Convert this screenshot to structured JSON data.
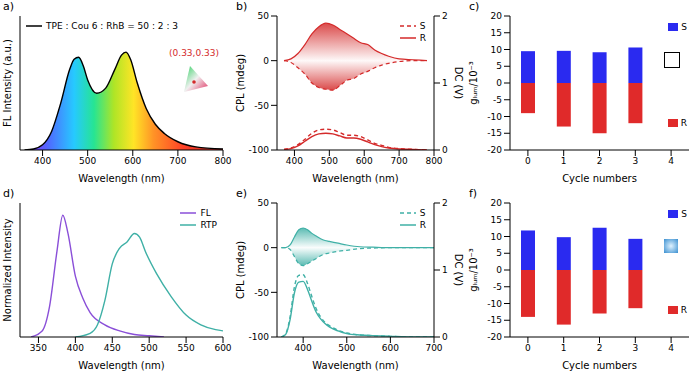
{
  "chart_data": [
    {
      "panel_label": "a)",
      "type": "line",
      "x_label": "Wavelength (nm)",
      "y_label": "FL Intensity (a.u.)",
      "xlim": [
        350,
        800
      ],
      "xticks": [
        400,
        500,
        600,
        700,
        800
      ],
      "ylim": [
        0,
        1.3
      ],
      "tick_labels": "x",
      "legend": "top left",
      "annotations": [
        "(0.33,0.33)"
      ],
      "series": [
        {
          "name": "TPE : Cou 6 : RhB = 50 : 2 : 3",
          "color": "#000000",
          "x": [
            360,
            380,
            400,
            420,
            440,
            460,
            470,
            480,
            490,
            500,
            520,
            540,
            560,
            575,
            585,
            595,
            610,
            630,
            650,
            670,
            700,
            740,
            800
          ],
          "values": [
            0,
            0.01,
            0.05,
            0.18,
            0.45,
            0.78,
            0.88,
            0.9,
            0.82,
            0.68,
            0.55,
            0.6,
            0.78,
            0.92,
            0.95,
            0.88,
            0.65,
            0.4,
            0.25,
            0.16,
            0.08,
            0.03,
            0.01
          ]
        }
      ]
    },
    {
      "panel_label": "b)",
      "type": "line",
      "x_label": "Wavelength (nm)",
      "y_label": "CPL (mdeg)",
      "y2_label": "DC (V)",
      "xlim": [
        350,
        800
      ],
      "xticks": [
        400,
        500,
        600,
        700,
        800
      ],
      "ylim": [
        -100,
        50
      ],
      "yticks": [
        -100,
        -50,
        0,
        50
      ],
      "y2lim": [
        0,
        2
      ],
      "y2ticks": [
        0,
        1,
        2
      ],
      "legend": "top right",
      "x": [
        370,
        390,
        410,
        430,
        450,
        470,
        490,
        510,
        530,
        550,
        570,
        590,
        610,
        630,
        650,
        670,
        700,
        740,
        780
      ],
      "series": [
        {
          "name": "S",
          "color": "#d42a2a",
          "line_style": "dashed",
          "values": [
            0,
            -2,
            -8,
            -15,
            -25,
            -30,
            -32,
            -33,
            -28,
            -22,
            -20,
            -15,
            -12,
            -8,
            -5,
            -3,
            -1,
            0,
            0
          ]
        },
        {
          "name": "R",
          "color": "#d42a2a",
          "line_style": "solid",
          "values": [
            0,
            2,
            8,
            18,
            30,
            38,
            42,
            40,
            35,
            30,
            25,
            20,
            18,
            12,
            8,
            5,
            2,
            1,
            0
          ]
        },
        {
          "name": "S",
          "color": "#d42a2a",
          "line_style": "dashed",
          "axis": "y2",
          "values": [
            0.01,
            0.03,
            0.08,
            0.16,
            0.25,
            0.3,
            0.31,
            0.3,
            0.26,
            0.22,
            0.22,
            0.2,
            0.15,
            0.1,
            0.07,
            0.04,
            0.02,
            0.01,
            0
          ]
        },
        {
          "name": "R",
          "color": "#d42a2a",
          "line_style": "solid",
          "axis": "y2",
          "values": [
            0.01,
            0.02,
            0.06,
            0.13,
            0.2,
            0.24,
            0.25,
            0.24,
            0.21,
            0.18,
            0.18,
            0.16,
            0.12,
            0.08,
            0.05,
            0.03,
            0.015,
            0.01,
            0
          ]
        }
      ]
    },
    {
      "panel_label": "c)",
      "type": "bar",
      "x_label": "Cycle numbers",
      "y_label": "gₗᵤₘ/10⁻³",
      "categories": [
        "0",
        "1",
        "2",
        "3",
        "4"
      ],
      "ylim": [
        -20,
        20
      ],
      "yticks": [
        -20,
        -15,
        -10,
        -5,
        0,
        5,
        10,
        15,
        20
      ],
      "legend": "right",
      "series": [
        {
          "name": "S",
          "color": "#2a2af0",
          "values": [
            9.5,
            9.6,
            9.2,
            10.6,
            null
          ]
        },
        {
          "name": "R",
          "color": "#e02a2a",
          "values": [
            -9,
            -13,
            -15,
            -12,
            null
          ]
        }
      ]
    },
    {
      "panel_label": "d)",
      "type": "line",
      "x_label": "Wavelength (nm)",
      "y_label": "Normalized Intensity",
      "xlim": [
        325,
        600
      ],
      "xticks": [
        350,
        400,
        450,
        500,
        550,
        600
      ],
      "ylim": [
        0,
        1.1
      ],
      "tick_labels": "x",
      "legend": "top right",
      "series": [
        {
          "name": "FL",
          "color": "#8a4fd8",
          "x": [
            340,
            355,
            365,
            375,
            383,
            390,
            400,
            410,
            420,
            440,
            460,
            480,
            500,
            520
          ],
          "values": [
            0,
            0.05,
            0.25,
            0.7,
            1.0,
            0.85,
            0.5,
            0.32,
            0.2,
            0.1,
            0.05,
            0.02,
            0.01,
            0
          ]
        },
        {
          "name": "RTP",
          "color": "#3fb0a6",
          "x": [
            400,
            420,
            430,
            440,
            450,
            460,
            470,
            480,
            487,
            495,
            510,
            530,
            550,
            570,
            590,
            600
          ],
          "values": [
            0,
            0.03,
            0.1,
            0.3,
            0.6,
            0.73,
            0.78,
            0.85,
            0.82,
            0.7,
            0.52,
            0.33,
            0.18,
            0.1,
            0.06,
            0.05
          ]
        }
      ]
    },
    {
      "panel_label": "e)",
      "type": "line",
      "x_label": "Wavelength (nm)",
      "y_label": "CPL (mdeg)",
      "y2_label": "DC (V)",
      "xlim": [
        340,
        700
      ],
      "xticks": [
        400,
        500,
        600,
        700
      ],
      "ylim": [
        -100,
        50
      ],
      "yticks": [
        -100,
        -50,
        0,
        50
      ],
      "y2lim": [
        0,
        2
      ],
      "y2ticks": [
        0,
        1,
        2
      ],
      "legend": "top right",
      "x": [
        350,
        360,
        370,
        380,
        390,
        400,
        410,
        420,
        430,
        440,
        450,
        460,
        480,
        500,
        530,
        560,
        600,
        650,
        700
      ],
      "series": [
        {
          "name": "S",
          "color": "#3fb0a6",
          "line_style": "dashed",
          "values": [
            0,
            0,
            -2,
            -10,
            -18,
            -20,
            -18,
            -15,
            -12,
            -9,
            -7,
            -6,
            -4,
            -3,
            -1,
            -0.5,
            0,
            0,
            0
          ]
        },
        {
          "name": "R",
          "color": "#3fb0a6",
          "line_style": "solid",
          "values": [
            0,
            0,
            3,
            12,
            20,
            22,
            20,
            16,
            13,
            10,
            8,
            7,
            5,
            3,
            1,
            0.5,
            0,
            0,
            0
          ]
        },
        {
          "name": "S",
          "color": "#3fb0a6",
          "line_style": "dashed",
          "axis": "y2",
          "values": [
            0,
            0.05,
            0.3,
            0.75,
            0.92,
            0.93,
            0.8,
            0.6,
            0.42,
            0.3,
            0.22,
            0.17,
            0.1,
            0.06,
            0.03,
            0.02,
            0.01,
            0,
            0
          ]
        },
        {
          "name": "R",
          "color": "#3fb0a6",
          "line_style": "solid",
          "axis": "y2",
          "values": [
            0,
            0.04,
            0.26,
            0.66,
            0.82,
            0.83,
            0.71,
            0.53,
            0.37,
            0.27,
            0.2,
            0.15,
            0.09,
            0.05,
            0.03,
            0.02,
            0.01,
            0,
            0
          ]
        }
      ]
    },
    {
      "panel_label": "f)",
      "type": "bar",
      "x_label": "Cycle numbers",
      "y_label": "gₗᵤₘ/10⁻³",
      "categories": [
        "0",
        "1",
        "2",
        "3",
        "4"
      ],
      "ylim": [
        -20,
        20
      ],
      "yticks": [
        -20,
        -15,
        -10,
        -5,
        0,
        5,
        10,
        15,
        20
      ],
      "legend": "right",
      "series": [
        {
          "name": "S",
          "color": "#2a2af0",
          "values": [
            11.8,
            9.8,
            12.6,
            9.3,
            null
          ]
        },
        {
          "name": "R",
          "color": "#e02a2a",
          "values": [
            -14,
            -16.3,
            -13,
            -11.4,
            null
          ]
        }
      ]
    }
  ]
}
